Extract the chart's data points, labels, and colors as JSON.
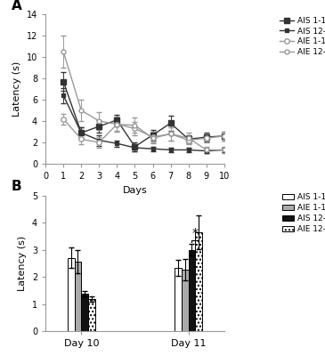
{
  "panel_A": {
    "days": [
      1,
      2,
      3,
      4,
      5,
      6,
      7,
      8,
      9,
      10
    ],
    "AIS_1_1": [
      7.7,
      2.9,
      3.5,
      4.1,
      1.6,
      2.7,
      3.8,
      2.3,
      2.5,
      2.6
    ],
    "AIS_1_1_err": [
      0.9,
      0.5,
      0.6,
      0.5,
      0.4,
      0.5,
      0.7,
      0.4,
      0.4,
      0.4
    ],
    "AIS_12_1": [
      6.4,
      2.9,
      2.2,
      1.9,
      1.5,
      1.4,
      1.3,
      1.3,
      1.2,
      1.3
    ],
    "AIS_12_1_err": [
      0.7,
      0.5,
      0.5,
      0.3,
      0.3,
      0.2,
      0.2,
      0.2,
      0.2,
      0.2
    ],
    "AIE_1_1": [
      4.2,
      2.3,
      2.0,
      3.7,
      3.3,
      2.5,
      2.8,
      2.2,
      2.4,
      2.6
    ],
    "AIE_1_1_err": [
      0.5,
      0.5,
      0.5,
      0.6,
      0.6,
      0.5,
      0.6,
      0.4,
      0.4,
      0.4
    ],
    "AIE_12_1": [
      10.5,
      5.0,
      4.0,
      3.7,
      3.6,
      2.4,
      2.8,
      2.4,
      1.3,
      1.3
    ],
    "AIE_12_1_err": [
      1.5,
      1.0,
      0.8,
      0.7,
      0.7,
      0.5,
      0.6,
      0.5,
      0.3,
      0.3
    ],
    "ylabel": "Latency (s)",
    "xlabel": "Days",
    "ylim": [
      0,
      14
    ],
    "yticks": [
      0,
      2,
      4,
      6,
      8,
      10,
      12,
      14
    ],
    "xticks": [
      0,
      1,
      2,
      3,
      4,
      5,
      6,
      7,
      8,
      9,
      10
    ]
  },
  "panel_B": {
    "day10": {
      "AIS_1_1": 2.7,
      "AIS_1_1_err": 0.38,
      "AIE_1_1": 2.57,
      "AIE_1_1_err": 0.43,
      "AIS_12_1": 1.38,
      "AIS_12_1_err": 0.1,
      "AIE_12_1": 1.18,
      "AIE_12_1_err": 0.1
    },
    "day11": {
      "AIS_1_1": 2.33,
      "AIS_1_1_err": 0.3,
      "AIE_1_1": 2.27,
      "AIE_1_1_err": 0.38,
      "AIS_12_1": 3.0,
      "AIS_12_1_err": 0.22,
      "AIE_12_1": 3.65,
      "AIE_12_1_err": 0.62
    },
    "ylabel": "Latency (s)",
    "ylim": [
      0,
      5
    ],
    "yticks": [
      0,
      1,
      2,
      3,
      4,
      5
    ]
  },
  "background": "#ffffff"
}
